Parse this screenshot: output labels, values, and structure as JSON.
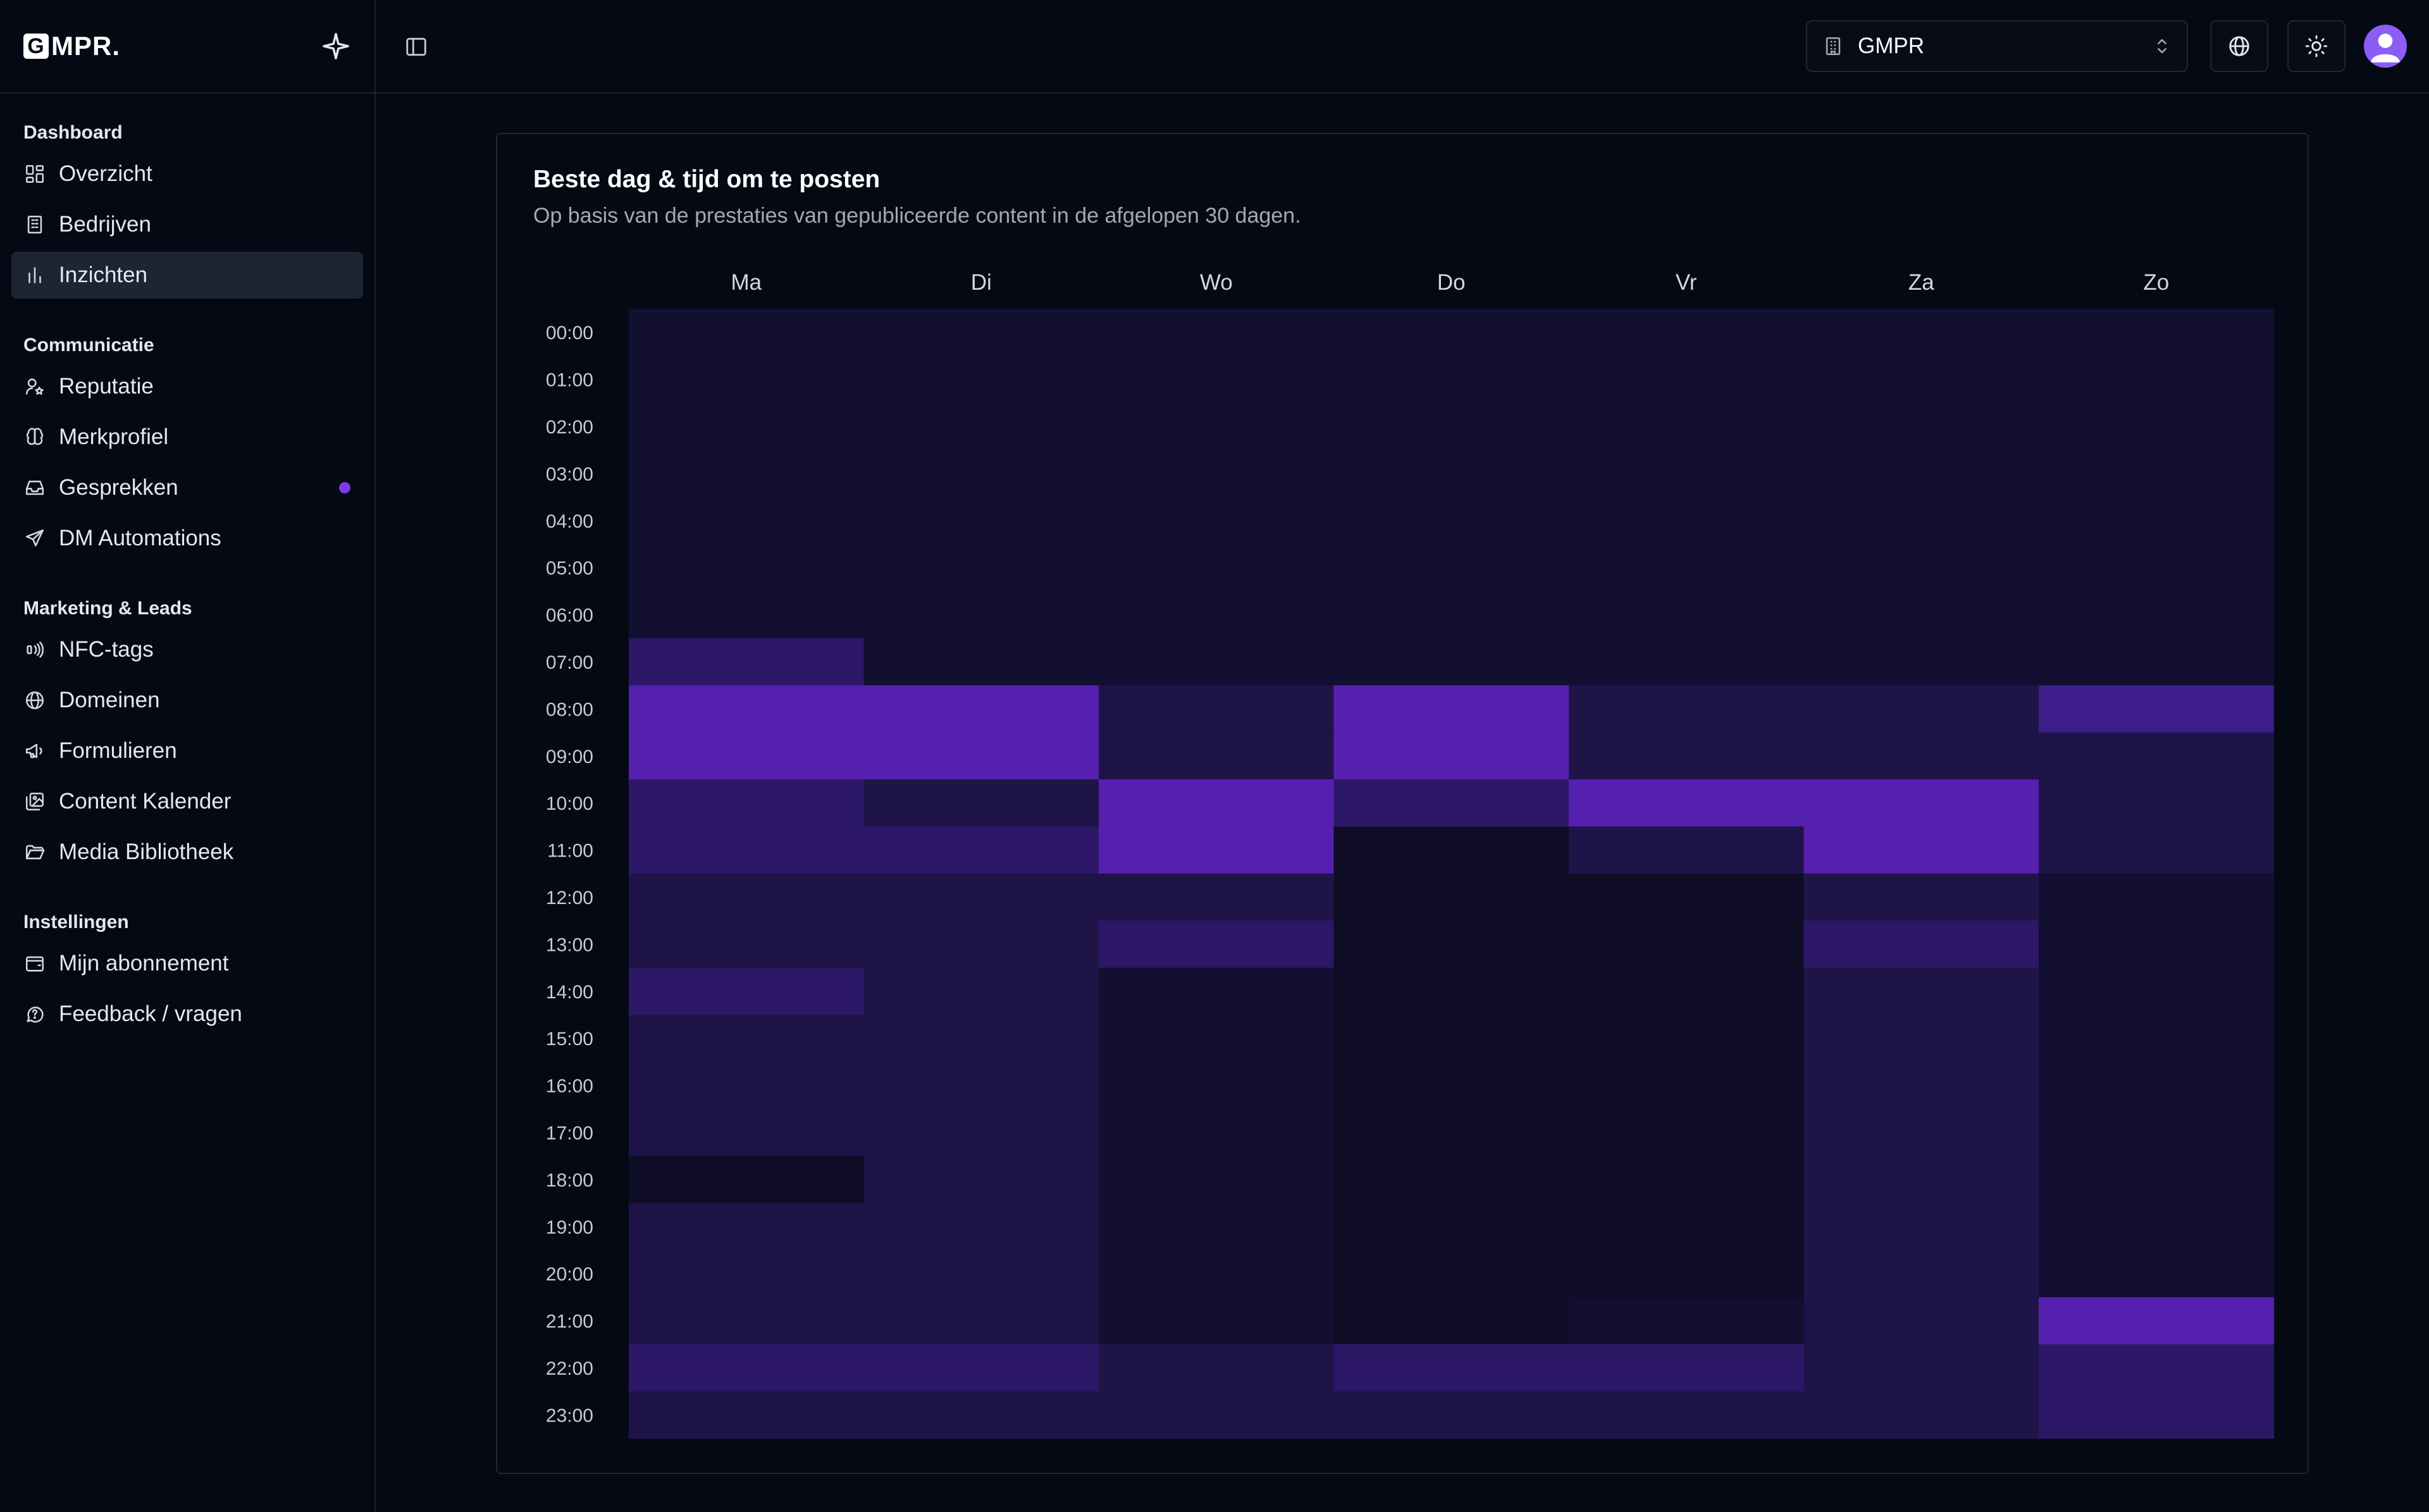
{
  "brand": {
    "name": "MPR.",
    "mark_letter": "G"
  },
  "sidebar": {
    "sections": [
      {
        "title": "Dashboard",
        "items": [
          {
            "label": "Overzicht",
            "icon": "layout-dashboard-icon",
            "active": false
          },
          {
            "label": "Bedrijven",
            "icon": "building-icon",
            "active": false
          },
          {
            "label": "Inzichten",
            "icon": "bar-chart-icon",
            "active": true
          }
        ]
      },
      {
        "title": "Communicatie",
        "items": [
          {
            "label": "Reputatie",
            "icon": "user-star-icon",
            "active": false
          },
          {
            "label": "Merkprofiel",
            "icon": "brain-icon",
            "active": false
          },
          {
            "label": "Gesprekken",
            "icon": "inbox-icon",
            "active": false,
            "badge_dot": true
          },
          {
            "label": "DM Automations",
            "icon": "send-icon",
            "active": false
          }
        ]
      },
      {
        "title": "Marketing & Leads",
        "items": [
          {
            "label": "NFC-tags",
            "icon": "nfc-icon",
            "active": false
          },
          {
            "label": "Domeinen",
            "icon": "globe-icon",
            "active": false
          },
          {
            "label": "Formulieren",
            "icon": "megaphone-icon",
            "active": false
          },
          {
            "label": "Content Kalender",
            "icon": "images-icon",
            "active": false
          },
          {
            "label": "Media Bibliotheek",
            "icon": "folder-open-icon",
            "active": false
          }
        ]
      },
      {
        "title": "Instellingen",
        "items": [
          {
            "label": "Mijn abonnement",
            "icon": "wallet-icon",
            "active": false
          },
          {
            "label": "Feedback / vragen",
            "icon": "help-circle-icon",
            "active": false
          }
        ]
      }
    ]
  },
  "topbar": {
    "org_select": {
      "value": "GMPR",
      "icon": "building-icon"
    },
    "language_button_icon": "globe-icon",
    "theme_button_icon": "sun-icon",
    "avatar_icon": "user-icon"
  },
  "colors": {
    "accent": "#7c3aed",
    "heat_scale": [
      "#0f0c25",
      "#120f30",
      "#1f1448",
      "#2c1867",
      "#3d1d8a",
      "#5520af"
    ]
  },
  "card": {
    "title": "Beste dag & tijd om te posten",
    "subtitle": "Op basis van de prestaties van gepubliceerde content in de afgelopen 30 dagen."
  },
  "chart_data": {
    "type": "heatmap",
    "x_categories": [
      "Ma",
      "Di",
      "Wo",
      "Do",
      "Vr",
      "Za",
      "Zo"
    ],
    "y_categories": [
      "00:00",
      "01:00",
      "02:00",
      "03:00",
      "04:00",
      "05:00",
      "06:00",
      "07:00",
      "08:00",
      "09:00",
      "10:00",
      "11:00",
      "12:00",
      "13:00",
      "14:00",
      "15:00",
      "16:00",
      "17:00",
      "18:00",
      "19:00",
      "20:00",
      "21:00",
      "22:00",
      "23:00"
    ],
    "scale": "relative intensity 0-5",
    "values": [
      [
        1,
        1,
        1,
        1,
        1,
        1,
        1
      ],
      [
        1,
        1,
        1,
        1,
        1,
        1,
        1
      ],
      [
        1,
        1,
        1,
        1,
        1,
        1,
        1
      ],
      [
        1,
        1,
        1,
        1,
        1,
        1,
        1
      ],
      [
        1,
        1,
        1,
        1,
        1,
        1,
        1
      ],
      [
        1,
        1,
        1,
        1,
        1,
        1,
        1
      ],
      [
        1,
        1,
        1,
        1,
        1,
        1,
        1
      ],
      [
        3,
        1,
        1,
        1,
        1,
        1,
        1
      ],
      [
        5,
        5,
        2,
        5,
        2,
        2,
        4
      ],
      [
        5,
        5,
        2,
        5,
        2,
        2,
        2
      ],
      [
        3,
        2,
        5,
        3,
        5,
        5,
        2
      ],
      [
        3,
        3,
        5,
        0,
        2,
        5,
        2
      ],
      [
        2,
        2,
        2,
        0,
        0,
        2,
        1
      ],
      [
        2,
        2,
        3,
        0,
        0,
        3,
        1
      ],
      [
        3,
        2,
        1,
        0,
        0,
        2,
        1
      ],
      [
        2,
        2,
        1,
        0,
        0,
        2,
        1
      ],
      [
        2,
        2,
        1,
        0,
        0,
        2,
        1
      ],
      [
        2,
        2,
        1,
        0,
        0,
        2,
        1
      ],
      [
        0,
        2,
        1,
        0,
        0,
        2,
        1
      ],
      [
        2,
        2,
        1,
        0,
        0,
        2,
        1
      ],
      [
        2,
        2,
        1,
        0,
        0,
        2,
        1
      ],
      [
        2,
        2,
        1,
        0,
        1,
        2,
        5
      ],
      [
        3,
        3,
        2,
        3,
        3,
        2,
        3
      ],
      [
        2,
        2,
        2,
        2,
        2,
        2,
        3
      ]
    ]
  }
}
